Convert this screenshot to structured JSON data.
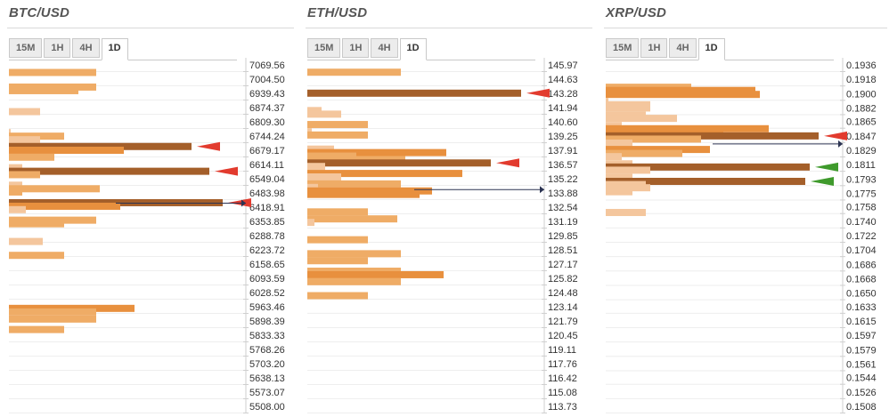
{
  "tabs": [
    "15M",
    "1H",
    "4H",
    "1D"
  ],
  "active_tab": "1D",
  "colors": {
    "light": "#f4c69d",
    "medium": "#efac66",
    "strong": "#e8903e",
    "dark": "#a45f2a",
    "arrow_red": "#e23b2e",
    "arrow_green": "#3f9a2c",
    "price_line": "#2b3352",
    "ladder": "#cfcfcf",
    "label_text": "#333333"
  },
  "chart_data": [
    {
      "type": "bar",
      "orientation": "horizontal",
      "title": "BTC/USD",
      "timeframe": "1D",
      "levels": [
        "7069.56",
        "7004.50",
        "6939.43",
        "6874.37",
        "6809.30",
        "6744.24",
        "6679.17",
        "6614.11",
        "6549.04",
        "6483.98",
        "6418.91",
        "6353.85",
        "6288.78",
        "6223.72",
        "6158.65",
        "6093.59",
        "6028.52",
        "5963.46",
        "5898.39",
        "5833.33",
        "5768.26",
        "5703.20",
        "5638.13",
        "5573.07",
        "5508.00"
      ],
      "bars": [
        {
          "y": 7035.0,
          "value": 98,
          "intensity": "medium"
        },
        {
          "y": 6968.2,
          "value": 98,
          "intensity": "medium"
        },
        {
          "y": 6951.8,
          "value": 78,
          "intensity": "medium"
        },
        {
          "y": 6855.8,
          "value": 35,
          "intensity": "light"
        },
        {
          "y": 6759.9,
          "value": 2,
          "intensity": "light"
        },
        {
          "y": 6743.6,
          "value": 62,
          "intensity": "medium"
        },
        {
          "y": 6727.3,
          "value": 35,
          "intensity": "light"
        },
        {
          "y": 6696.4,
          "value": 205,
          "intensity": "dark",
          "arrow": "red"
        },
        {
          "y": 6679.2,
          "value": 129,
          "intensity": "strong"
        },
        {
          "y": 6647.5,
          "value": 51,
          "intensity": "medium"
        },
        {
          "y": 6599.4,
          "value": 15,
          "intensity": "light"
        },
        {
          "y": 6583.1,
          "value": 225,
          "intensity": "dark",
          "arrow": "red"
        },
        {
          "y": 6567.5,
          "value": 35,
          "intensity": "medium"
        },
        {
          "y": 6519.4,
          "value": 15,
          "intensity": "light"
        },
        {
          "y": 6503.1,
          "value": 102,
          "intensity": "medium"
        },
        {
          "y": 6488.2,
          "value": 15,
          "intensity": "medium"
        },
        {
          "y": 6439.4,
          "value": 240,
          "intensity": "dark",
          "arrow": "red"
        },
        {
          "y": 6423.1,
          "value": 125,
          "intensity": "strong"
        },
        {
          "y": 6407.5,
          "value": 19,
          "intensity": "light"
        },
        {
          "y": 6359.4,
          "value": 98,
          "intensity": "medium"
        },
        {
          "y": 6343.1,
          "value": 62,
          "intensity": "medium"
        },
        {
          "y": 6262.0,
          "value": 38,
          "intensity": "light"
        },
        {
          "y": 6198.5,
          "value": 62,
          "intensity": "medium"
        },
        {
          "y": 5956.0,
          "value": 141,
          "intensity": "strong"
        },
        {
          "y": 5939.7,
          "value": 98,
          "intensity": "medium"
        },
        {
          "y": 5907.1,
          "value": 98,
          "intensity": "medium"
        },
        {
          "y": 5859.2,
          "value": 62,
          "intensity": "medium"
        }
      ],
      "current_price_y": 6437.0,
      "x_max": 265
    },
    {
      "type": "bar",
      "orientation": "horizontal",
      "title": "ETH/USD",
      "timeframe": "1D",
      "levels": [
        "145.97",
        "144.63",
        "143.28",
        "141.94",
        "140.60",
        "139.25",
        "137.91",
        "136.57",
        "135.22",
        "133.88",
        "132.54",
        "131.19",
        "129.85",
        "128.51",
        "127.17",
        "125.82",
        "124.48",
        "123.14",
        "121.79",
        "120.45",
        "119.11",
        "117.76",
        "116.42",
        "115.08",
        "113.73"
      ],
      "bars": [
        {
          "y": 145.28,
          "value": 105,
          "intensity": "medium"
        },
        {
          "y": 143.3,
          "value": 240,
          "intensity": "dark",
          "arrow": "red"
        },
        {
          "y": 141.66,
          "value": 16,
          "intensity": "light"
        },
        {
          "y": 141.32,
          "value": 38,
          "intensity": "light"
        },
        {
          "y": 140.34,
          "value": 68,
          "intensity": "medium"
        },
        {
          "y": 139.67,
          "value": 5,
          "intensity": "light"
        },
        {
          "y": 139.35,
          "value": 68,
          "intensity": "medium"
        },
        {
          "y": 138.02,
          "value": 30,
          "intensity": "light"
        },
        {
          "y": 137.69,
          "value": 156,
          "intensity": "strong"
        },
        {
          "y": 137.36,
          "value": 55,
          "intensity": "medium"
        },
        {
          "y": 137.03,
          "value": 110,
          "intensity": "medium"
        },
        {
          "y": 136.71,
          "value": 206,
          "intensity": "dark",
          "arrow": "red"
        },
        {
          "y": 136.38,
          "value": 20,
          "intensity": "light"
        },
        {
          "y": 135.72,
          "value": 174,
          "intensity": "strong"
        },
        {
          "y": 135.39,
          "value": 38,
          "intensity": "light"
        },
        {
          "y": 135.06,
          "value": 20,
          "intensity": "light"
        },
        {
          "y": 134.73,
          "value": 105,
          "intensity": "medium"
        },
        {
          "y": 134.4,
          "value": 12,
          "intensity": "light"
        },
        {
          "y": 134.07,
          "value": 140,
          "intensity": "strong"
        },
        {
          "y": 133.74,
          "value": 126,
          "intensity": "strong"
        },
        {
          "y": 132.09,
          "value": 68,
          "intensity": "medium"
        },
        {
          "y": 131.43,
          "value": 101,
          "intensity": "medium"
        },
        {
          "y": 131.1,
          "value": 8,
          "intensity": "light"
        },
        {
          "y": 129.46,
          "value": 68,
          "intensity": "medium"
        },
        {
          "y": 128.14,
          "value": 105,
          "intensity": "medium"
        },
        {
          "y": 127.48,
          "value": 68,
          "intensity": "medium"
        },
        {
          "y": 126.49,
          "value": 105,
          "intensity": "medium"
        },
        {
          "y": 126.16,
          "value": 153,
          "intensity": "strong"
        },
        {
          "y": 125.5,
          "value": 105,
          "intensity": "medium"
        },
        {
          "y": 124.18,
          "value": 68,
          "intensity": "medium"
        }
      ],
      "current_price_y": 134.2,
      "x_max": 265
    },
    {
      "type": "bar",
      "orientation": "horizontal",
      "title": "XRP/USD",
      "timeframe": "1D",
      "levels": [
        "0.1936",
        "0.1918",
        "0.1900",
        "0.1882",
        "0.1865",
        "0.1847",
        "0.1829",
        "0.1811",
        "0.1793",
        "0.1775",
        "0.1758",
        "0.1740",
        "0.1722",
        "0.1704",
        "0.1686",
        "0.1668",
        "0.1650",
        "0.1633",
        "0.1615",
        "0.1597",
        "0.1579",
        "0.1561",
        "0.1544",
        "0.1526",
        "0.1508"
      ],
      "bars": [
        {
          "y": 0.1908,
          "value": 96,
          "intensity": "medium"
        },
        {
          "y": 0.1904,
          "value": 168,
          "intensity": "strong"
        },
        {
          "y": 0.1899,
          "value": 173,
          "intensity": "strong"
        },
        {
          "y": 0.189,
          "value": 3,
          "intensity": "light"
        },
        {
          "y": 0.1886,
          "value": 50,
          "intensity": "light"
        },
        {
          "y": 0.1882,
          "value": 50,
          "intensity": "light"
        },
        {
          "y": 0.1873,
          "value": 45,
          "intensity": "light"
        },
        {
          "y": 0.1869,
          "value": 80,
          "intensity": "light"
        },
        {
          "y": 0.186,
          "value": 18,
          "intensity": "light"
        },
        {
          "y": 0.1856,
          "value": 183,
          "intensity": "strong"
        },
        {
          "y": 0.1852,
          "value": 132,
          "intensity": "strong"
        },
        {
          "y": 0.1847,
          "value": 239,
          "intensity": "dark",
          "arrow": "red"
        },
        {
          "y": 0.1843,
          "value": 107,
          "intensity": "medium"
        },
        {
          "y": 0.1838,
          "value": 30,
          "intensity": "light"
        },
        {
          "y": 0.1834,
          "value": 15,
          "intensity": "light"
        },
        {
          "y": 0.183,
          "value": 117,
          "intensity": "strong"
        },
        {
          "y": 0.1825,
          "value": 86,
          "intensity": "medium"
        },
        {
          "y": 0.1821,
          "value": 18,
          "intensity": "light"
        },
        {
          "y": 0.1812,
          "value": 30,
          "intensity": "light"
        },
        {
          "y": 0.1808,
          "value": 229,
          "intensity": "dark",
          "arrow": "green"
        },
        {
          "y": 0.1804,
          "value": 50,
          "intensity": "light"
        },
        {
          "y": 0.1795,
          "value": 30,
          "intensity": "light"
        },
        {
          "y": 0.179,
          "value": 224,
          "intensity": "dark",
          "arrow": "green"
        },
        {
          "y": 0.1786,
          "value": 45,
          "intensity": "light"
        },
        {
          "y": 0.1782,
          "value": 50,
          "intensity": "light"
        },
        {
          "y": 0.1777,
          "value": 30,
          "intensity": "light"
        },
        {
          "y": 0.1751,
          "value": 45,
          "intensity": "light"
        }
      ],
      "current_price_y": 0.1837,
      "x_max": 265
    }
  ]
}
